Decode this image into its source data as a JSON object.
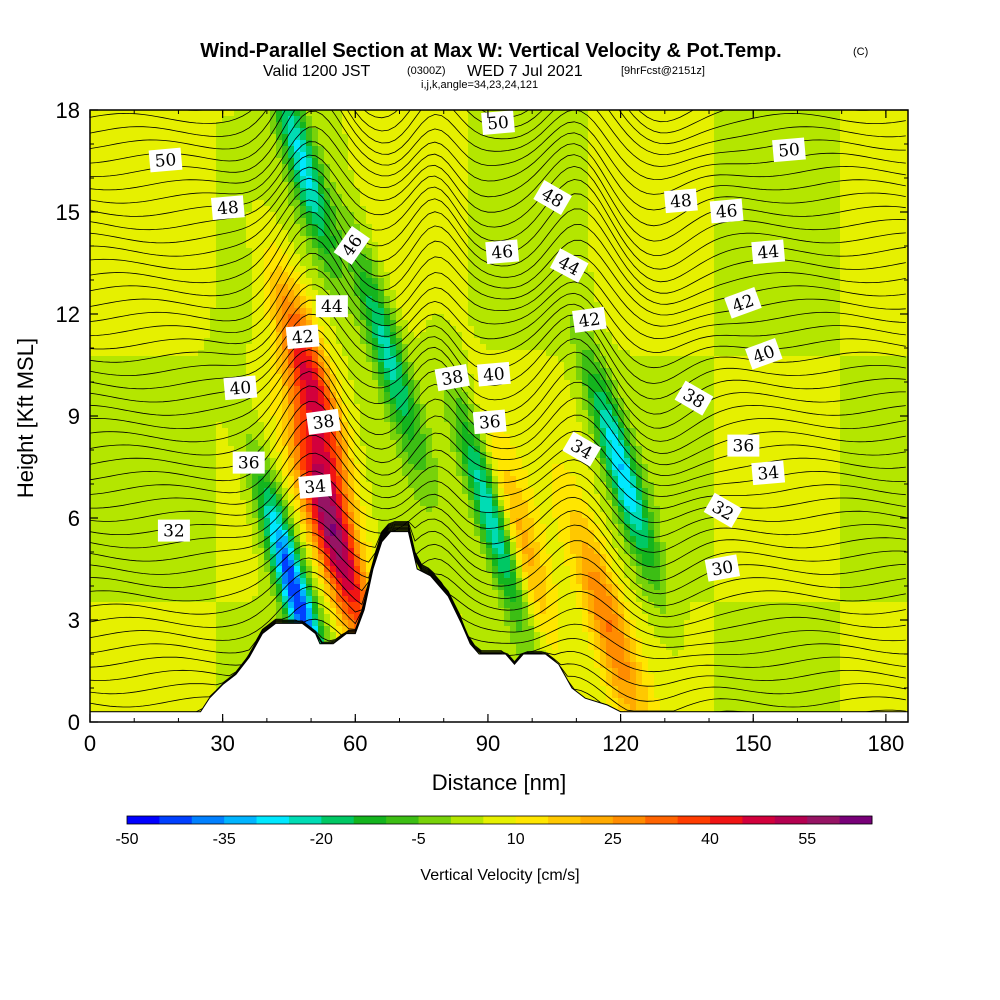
{
  "header": {
    "title": "Wind-Parallel Section at Max W: Vertical Velocity & Pot.Temp.",
    "copyright": "(C)",
    "valid_prefix": "Valid 1200 JST",
    "valid_utc": "(0300Z)",
    "valid_date": "WED 7 Jul 2021",
    "forecast": "[9hrFcst@2151z]",
    "indices": "i,j,k,angle=34,23,24,121"
  },
  "chart_data": {
    "type": "heatmap",
    "xlabel": "Distance [nm]",
    "ylabel": "Height [Kft MSL]",
    "xlim": [
      0,
      185
    ],
    "ylim": [
      0,
      18
    ],
    "xticks": [
      "0",
      "30",
      "60",
      "90",
      "120",
      "150",
      "180"
    ],
    "yticks": [
      "0",
      "3",
      "6",
      "9",
      "12",
      "15",
      "18"
    ],
    "colorbar": {
      "label": "Vertical Velocity [cm/s]",
      "min": -50,
      "max": 60,
      "step": 5,
      "tick_labels": [
        "-50",
        "-35",
        "-20",
        "-5",
        "10",
        "25",
        "40",
        "55"
      ],
      "colors": [
        "#0000ff",
        "#0040ff",
        "#0080ff",
        "#00b4ff",
        "#00e8ff",
        "#00dcb4",
        "#00c864",
        "#14b41e",
        "#3cbe14",
        "#78d20a",
        "#b4e600",
        "#e6f000",
        "#ffe600",
        "#ffc800",
        "#ffaa00",
        "#ff8c00",
        "#ff6400",
        "#ff3c00",
        "#f01414",
        "#d2003c",
        "#b40050",
        "#961464",
        "#780078"
      ]
    },
    "theta_contour_labels": [
      "30",
      "32",
      "34",
      "36",
      "38",
      "40",
      "42",
      "44",
      "46",
      "48",
      "50"
    ],
    "velocity_features": [
      {
        "kind": "updraft",
        "x": 55,
        "y": 5.5,
        "peak_cm_s": 58
      },
      {
        "kind": "updraft",
        "x": 50,
        "y": 10,
        "peak_cm_s": 45
      },
      {
        "kind": "updraft",
        "x": 98,
        "y": 5,
        "peak_cm_s": 22
      },
      {
        "kind": "updraft",
        "x": 117,
        "y": 3,
        "peak_cm_s": 30
      },
      {
        "kind": "downdraft",
        "x": 46,
        "y": 4,
        "peak_cm_s": -45
      },
      {
        "kind": "downdraft",
        "x": 91,
        "y": 6,
        "peak_cm_s": -30
      },
      {
        "kind": "downdraft",
        "x": 120,
        "y": 7.5,
        "peak_cm_s": -28
      },
      {
        "kind": "downdraft",
        "x": 67,
        "y": 11,
        "peak_cm_s": -22
      },
      {
        "kind": "downdraft",
        "x": 48,
        "y": 16.5,
        "peak_cm_s": -25
      }
    ],
    "terrain": [
      [
        0,
        0.3
      ],
      [
        15,
        0.3
      ],
      [
        25,
        0.3
      ],
      [
        27,
        0.7
      ],
      [
        30,
        1.1
      ],
      [
        33,
        1.4
      ],
      [
        36,
        1.9
      ],
      [
        39,
        2.6
      ],
      [
        42,
        2.9
      ],
      [
        45,
        2.9
      ],
      [
        48,
        2.9
      ],
      [
        51,
        2.6
      ],
      [
        52,
        2.3
      ],
      [
        55,
        2.3
      ],
      [
        58,
        2.6
      ],
      [
        60,
        2.6
      ],
      [
        62,
        3.3
      ],
      [
        64,
        4.5
      ],
      [
        66,
        5.3
      ],
      [
        68,
        5.6
      ],
      [
        72,
        5.6
      ],
      [
        74,
        4.5
      ],
      [
        77,
        4.3
      ],
      [
        79,
        4.0
      ],
      [
        81,
        3.7
      ],
      [
        84,
        2.9
      ],
      [
        86,
        2.3
      ],
      [
        88,
        2.0
      ],
      [
        94,
        2.0
      ],
      [
        96,
        1.7
      ],
      [
        98,
        2.0
      ],
      [
        103,
        2.0
      ],
      [
        106,
        1.7
      ],
      [
        109,
        1.0
      ],
      [
        112,
        0.7
      ],
      [
        117,
        0.5
      ],
      [
        120,
        0.3
      ],
      [
        185,
        0.3
      ]
    ]
  }
}
